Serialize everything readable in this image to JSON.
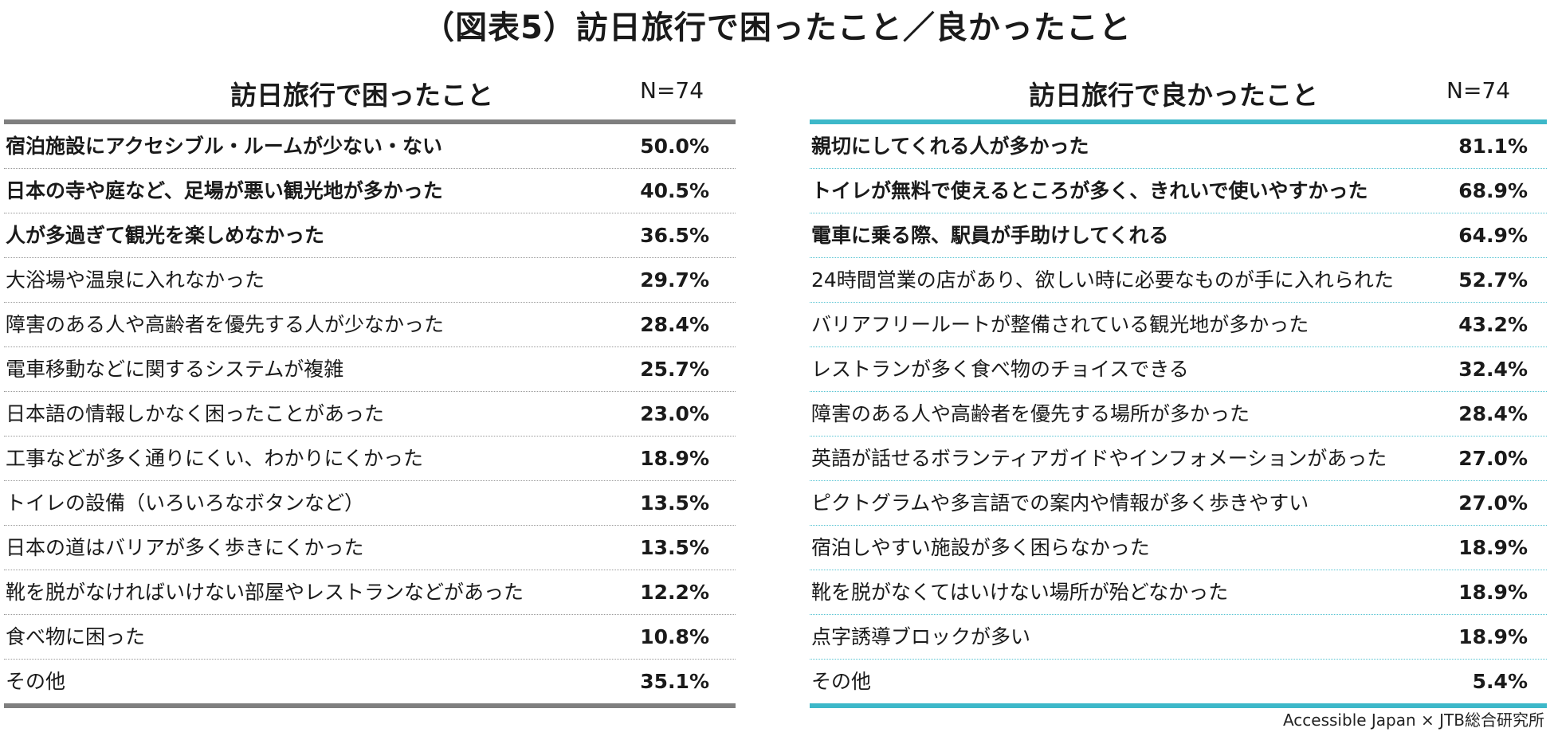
{
  "title": "（図表5）訪日旅行で困ったこと／良かったこと",
  "left": {
    "heading": "訪日旅行で困ったこと",
    "n": "N=74",
    "rows": [
      {
        "label": "宿泊施設にアクセシブル・ルームが少ない・ない",
        "value": "50.0%",
        "emphasis": true
      },
      {
        "label": "日本の寺や庭など、足場が悪い観光地が多かった",
        "value": "40.5%",
        "emphasis": true
      },
      {
        "label": "人が多過ぎて観光を楽しめなかった",
        "value": "36.5%",
        "emphasis": true
      },
      {
        "label": "大浴場や温泉に入れなかった",
        "value": "29.7%",
        "emphasis": false
      },
      {
        "label": "障害のある人や高齢者を優先する人が少なかった",
        "value": "28.4%",
        "emphasis": false
      },
      {
        "label": "電車移動などに関するシステムが複雑",
        "value": "25.7%",
        "emphasis": false
      },
      {
        "label": "日本語の情報しかなく困ったことがあった",
        "value": "23.0%",
        "emphasis": false
      },
      {
        "label": "工事などが多く通りにくい、わかりにくかった",
        "value": "18.9%",
        "emphasis": false
      },
      {
        "label": "トイレの設備（いろいろなボタンなど）",
        "value": "13.5%",
        "emphasis": false
      },
      {
        "label": "日本の道はバリアが多く歩きにくかった",
        "value": "13.5%",
        "emphasis": false
      },
      {
        "label": "靴を脱がなければいけない部屋やレストランなどがあった",
        "value": "12.2%",
        "emphasis": false
      },
      {
        "label": "食べ物に困った",
        "value": "10.8%",
        "emphasis": false
      },
      {
        "label": "その他",
        "value": "35.1%",
        "emphasis": false
      }
    ]
  },
  "right": {
    "heading": "訪日旅行で良かったこと",
    "n": "N=74",
    "rows": [
      {
        "label": "親切にしてくれる人が多かった",
        "value": "81.1%",
        "emphasis": true
      },
      {
        "label": "トイレが無料で使えるところが多く、きれいで使いやすかった",
        "value": "68.9%",
        "emphasis": true
      },
      {
        "label": "電車に乗る際、駅員が手助けしてくれる",
        "value": "64.9%",
        "emphasis": true
      },
      {
        "label": "24時間営業の店があり、欲しい時に必要なものが手に入れられた",
        "value": "52.7%",
        "emphasis": false
      },
      {
        "label": "バリアフリールートが整備されている観光地が多かった",
        "value": "43.2%",
        "emphasis": false
      },
      {
        "label": "レストランが多く食べ物のチョイスできる",
        "value": "32.4%",
        "emphasis": false
      },
      {
        "label": "障害のある人や高齢者を優先する場所が多かった",
        "value": "28.4%",
        "emphasis": false
      },
      {
        "label": "英語が話せるボランティアガイドやインフォメーションがあった",
        "value": "27.0%",
        "emphasis": false
      },
      {
        "label": "ピクトグラムや多言語での案内や情報が多く歩きやすい",
        "value": "27.0%",
        "emphasis": false
      },
      {
        "label": "宿泊しやすい施設が多く困らなかった",
        "value": "18.9%",
        "emphasis": false
      },
      {
        "label": "靴を脱がなくてはいけない場所が殆どなかった",
        "value": "18.9%",
        "emphasis": false
      },
      {
        "label": "点字誘導ブロックが多い",
        "value": "18.9%",
        "emphasis": false
      },
      {
        "label": "その他",
        "value": "5.4%",
        "emphasis": false
      }
    ]
  },
  "source": "Accessible Japan × JTB総合研究所",
  "colors": {
    "left_rule": "#7f7f7f",
    "right_rule": "#3db8c9"
  }
}
